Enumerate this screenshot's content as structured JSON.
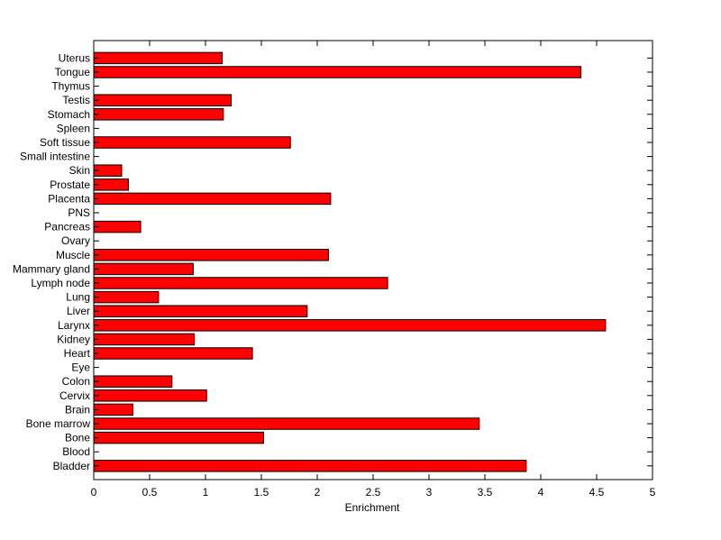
{
  "chart_data": {
    "type": "bar",
    "orientation": "horizontal",
    "title": "",
    "xlabel": "Enrichment",
    "ylabel": "",
    "xlim": [
      0,
      5
    ],
    "xticks": [
      "0",
      "0.5",
      "1",
      "1.5",
      "2",
      "2.5",
      "3",
      "3.5",
      "4",
      "4.5",
      "5"
    ],
    "grid": false,
    "bar_color": "#ff0000",
    "bar_edge_color": "#000000",
    "categories": [
      "Bladder",
      "Blood",
      "Bone",
      "Bone marrow",
      "Brain",
      "Cervix",
      "Colon",
      "Eye",
      "Heart",
      "Kidney",
      "Larynx",
      "Liver",
      "Lung",
      "Lymph node",
      "Mammary gland",
      "Muscle",
      "Ovary",
      "Pancreas",
      "PNS",
      "Placenta",
      "Prostate",
      "Skin",
      "Small intestine",
      "Soft tissue",
      "Spleen",
      "Stomach",
      "Testis",
      "Thymus",
      "Tongue",
      "Uterus"
    ],
    "values": [
      3.87,
      0,
      1.52,
      3.45,
      0.35,
      1.01,
      0.7,
      0,
      1.42,
      0.9,
      4.58,
      1.91,
      0.58,
      2.63,
      0.89,
      2.1,
      0,
      0.42,
      0,
      2.12,
      0.31,
      0.25,
      0,
      1.76,
      0,
      1.16,
      1.23,
      0,
      4.36,
      1.15
    ]
  }
}
